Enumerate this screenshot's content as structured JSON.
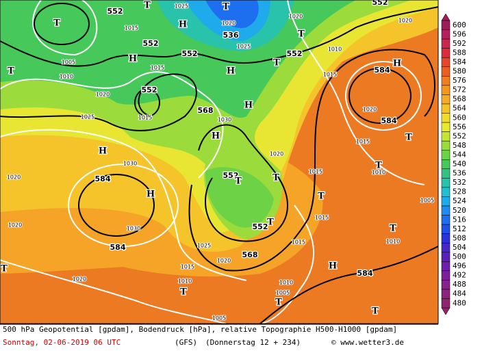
{
  "legend": {
    "values": [
      600,
      596,
      592,
      588,
      584,
      580,
      576,
      572,
      568,
      564,
      560,
      556,
      552,
      548,
      544,
      540,
      536,
      532,
      528,
      524,
      520,
      516,
      512,
      508,
      504,
      500,
      496,
      492,
      488,
      484,
      480
    ],
    "colors": [
      "#9b1d5a",
      "#b4205a",
      "#c82850",
      "#dc2b3c",
      "#e6462d",
      "#eb5f23",
      "#f07d1e",
      "#f5961e",
      "#f5aa28",
      "#f5c328",
      "#f0dc2d",
      "#e6eb32",
      "#c3e632",
      "#9bdc3c",
      "#6ed246",
      "#46c85a",
      "#32c382",
      "#28c3aa",
      "#23bed2",
      "#1eaaeb",
      "#1e8cf0",
      "#1e6ef0",
      "#1e50e6",
      "#2d32d7",
      "#4628c8",
      "#5a1eb9",
      "#6e1eaa",
      "#7d1e9b",
      "#87218c",
      "#8c237d",
      "#91246e"
    ]
  },
  "geopotential_labels": [
    "552",
    "552",
    "552",
    "552",
    "552",
    "568",
    "584",
    "584",
    "552",
    "552",
    "568",
    "584",
    "584",
    "584",
    "536",
    "552"
  ],
  "isobar_labels": [
    "1025",
    "1020",
    "1015",
    "1020",
    "1025",
    "1015",
    "1005",
    "1010",
    "1020",
    "1025",
    "1015",
    "1030",
    "1030",
    "1020",
    "1020",
    "1015",
    "1015",
    "1010",
    "1005",
    "1015",
    "1020",
    "1030",
    "1025",
    "1020",
    "1015",
    "1010",
    "1015",
    "1010",
    "1020",
    "1010",
    "1005",
    "1020",
    "1015",
    "1010",
    "1020",
    "1005"
  ],
  "pressure_centers": [
    "T",
    "T",
    "H",
    "T",
    "T",
    "H",
    "T",
    "H",
    "T",
    "H",
    "H",
    "H",
    "H",
    "T",
    "T",
    "T",
    "T",
    "T",
    "T",
    "H",
    "T",
    "H",
    "T",
    "T",
    "T",
    "T"
  ],
  "footer": {
    "description": "500 hPa Geopotential [gpdam], Bodendruck [hPa], relative Topographie H500-H1000 [gpdam]",
    "date": "Sonntag, 02-06-2019  06 UTC",
    "model": "(GFS)",
    "run": "(Donnerstag 12 + 234)",
    "credit": "© www.wetter3.de"
  }
}
